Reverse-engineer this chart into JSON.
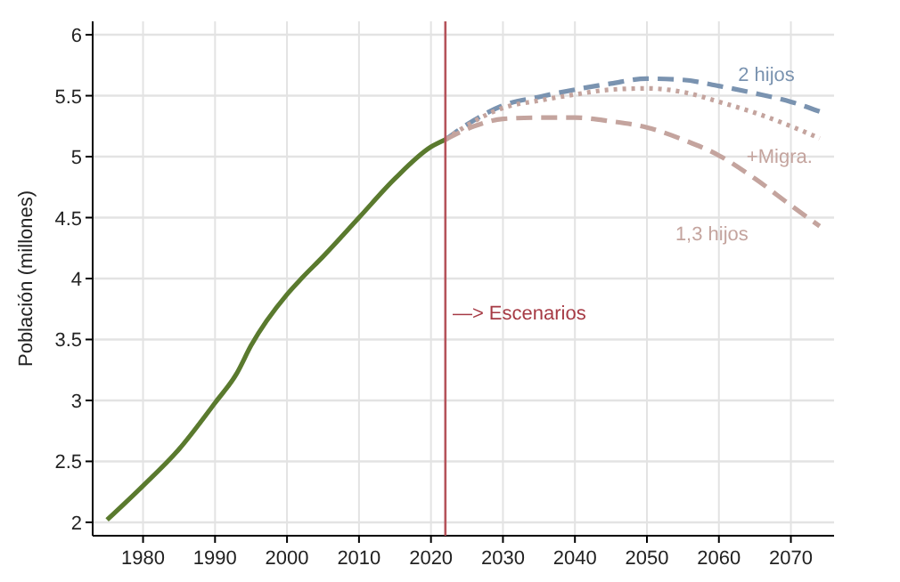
{
  "chart_data": {
    "type": "line",
    "ylabel": "Población (millones)",
    "xlim": [
      1973,
      2076
    ],
    "ylim": [
      1.89,
      6.11
    ],
    "xticks": [
      1980,
      1990,
      2000,
      2010,
      2020,
      2030,
      2040,
      2050,
      2060,
      2070
    ],
    "yticks": [
      2,
      2.5,
      3,
      3.5,
      4,
      4.5,
      5,
      5.5,
      6
    ],
    "grid": true,
    "legend": false,
    "series": [
      {
        "color": "#5a7a2e",
        "line_style": "solid",
        "x": [
          1975,
          1980,
          1985,
          1990,
          1993,
          1995,
          2000,
          2002,
          2005,
          2010,
          2015,
          2020,
          2022
        ],
        "values": [
          2.02,
          2.3,
          2.6,
          2.98,
          3.22,
          3.45,
          3.87,
          4.0,
          4.18,
          4.5,
          4.82,
          5.08,
          5.14
        ]
      },
      {
        "name": "2 hijos",
        "color": "#7a93b0",
        "line_style": "dashed",
        "x": [
          2022,
          2026,
          2030,
          2035,
          2040,
          2045,
          2050,
          2055,
          2060,
          2065,
          2070,
          2074
        ],
        "values": [
          5.14,
          5.3,
          5.42,
          5.49,
          5.55,
          5.6,
          5.64,
          5.63,
          5.58,
          5.52,
          5.45,
          5.37
        ]
      },
      {
        "name": "+Migra.",
        "color": "#c4a49e",
        "line_style": "dotted",
        "x": [
          2022,
          2026,
          2030,
          2035,
          2040,
          2045,
          2050,
          2055,
          2060,
          2065,
          2070,
          2074
        ],
        "values": [
          5.14,
          5.29,
          5.4,
          5.46,
          5.51,
          5.55,
          5.56,
          5.53,
          5.45,
          5.36,
          5.25,
          5.15
        ]
      },
      {
        "name": "1,3 hijos",
        "color": "#c4a49e",
        "line_style": "dashed",
        "x": [
          2022,
          2026,
          2030,
          2035,
          2040,
          2045,
          2050,
          2055,
          2060,
          2065,
          2070,
          2074
        ],
        "values": [
          5.14,
          5.25,
          5.31,
          5.32,
          5.32,
          5.29,
          5.24,
          5.14,
          5.01,
          4.82,
          4.6,
          4.43
        ]
      }
    ],
    "ref_lines": [
      {
        "axis": "x",
        "value": 2022,
        "color": "#b5535a"
      }
    ],
    "annotations": [
      {
        "text": "—> Escenarios",
        "x": 2023,
        "y": 3.72
      }
    ]
  }
}
